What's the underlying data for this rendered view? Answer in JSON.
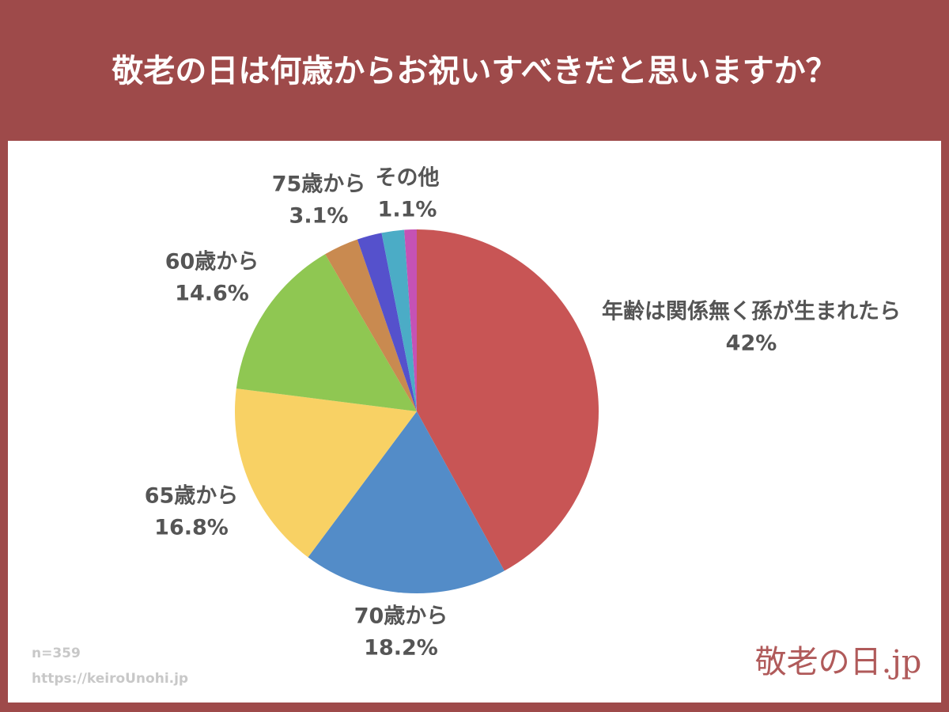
{
  "chart_data": {
    "type": "pie",
    "title": "敬老の日は何歳からお祝いすべきだと思いますか？",
    "categories": [
      "年齢は関係無く孫が生まれたら",
      "70歳から",
      "65歳から",
      "60歳から",
      "75歳から",
      null,
      null,
      "その他"
    ],
    "values": [
      42,
      18.2,
      16.8,
      14.6,
      3.1,
      2.2,
      2.0,
      1.1
    ],
    "value_labels": [
      "42%",
      "18.2%",
      "16.8%",
      "14.6%",
      "3.1%",
      null,
      null,
      "1.1%"
    ],
    "colors": [
      "#c85555",
      "#538cc8",
      "#f8d164",
      "#8fc752",
      "#c98a50",
      "#5551cc",
      "#4bacc6",
      "#c552b5"
    ]
  },
  "footer": {
    "note": "n=359",
    "url": "https://keiroUnohi.jp",
    "logo": "敬老の日.jp"
  }
}
